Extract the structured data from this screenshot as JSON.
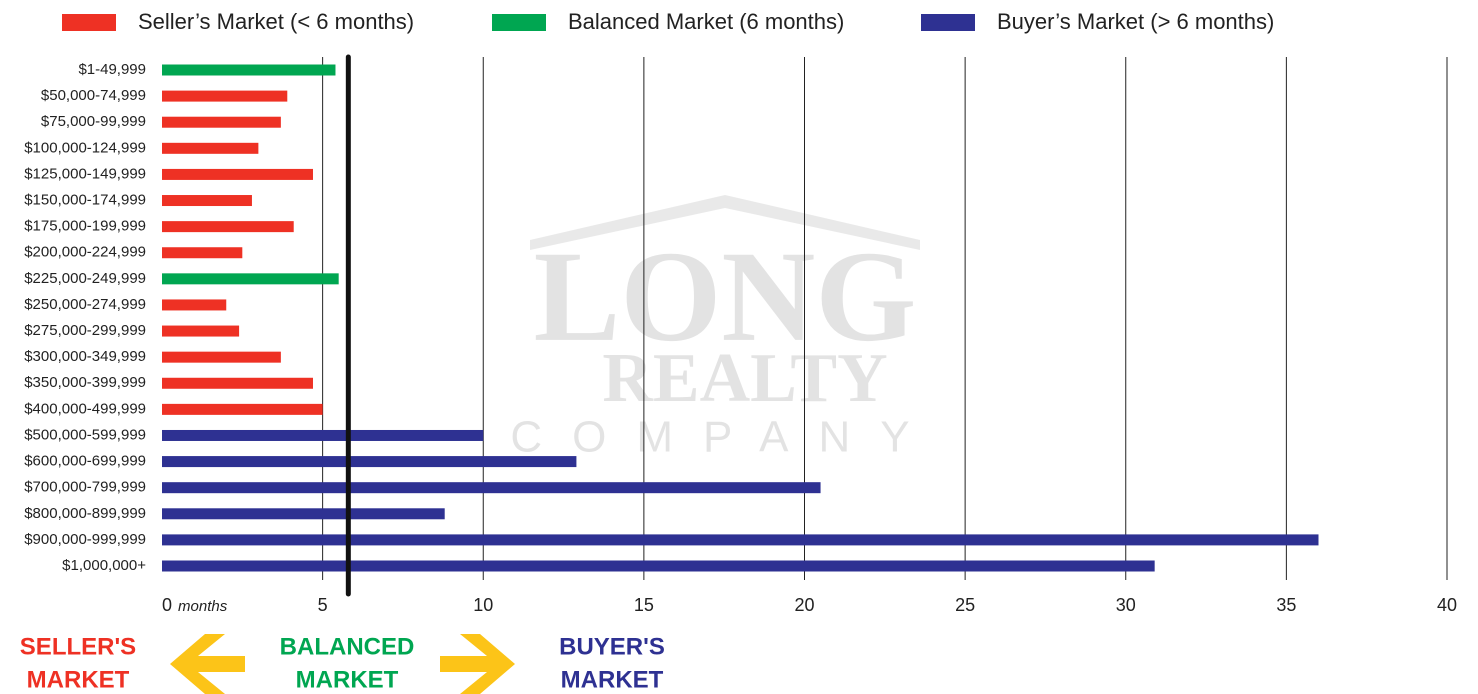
{
  "chart_data": {
    "type": "bar",
    "orientation": "horizontal",
    "legend": [
      {
        "name": "Seller’s Market (< 6 months)",
        "color": "#ee3124"
      },
      {
        "name": "Balanced Market (6 months)",
        "color": "#00a651"
      },
      {
        "name": "Buyer’s Market (> 6 months)",
        "color": "#2e3192"
      }
    ],
    "categories": [
      "$1-49,999",
      "$50,000-74,999",
      "$75,000-99,999",
      "$100,000-124,999",
      "$125,000-149,999",
      "$150,000-174,999",
      "$175,000-199,999",
      "$200,000-224,999",
      "$225,000-249,999",
      "$250,000-274,999",
      "$275,000-299,999",
      "$300,000-349,999",
      "$350,000-399,999",
      "$400,000-499,999",
      "$500,000-599,999",
      "$600,000-699,999",
      "$700,000-799,999",
      "$800,000-899,999",
      "$900,000-999,999",
      "$1,000,000+"
    ],
    "values": [
      5.4,
      3.9,
      3.7,
      3.0,
      4.7,
      2.8,
      4.1,
      2.5,
      5.5,
      2.0,
      2.4,
      3.7,
      4.7,
      5.0,
      10.0,
      12.9,
      20.5,
      8.8,
      36.0,
      30.9
    ],
    "colors": [
      "#00a651",
      "#ee3124",
      "#ee3124",
      "#ee3124",
      "#ee3124",
      "#ee3124",
      "#ee3124",
      "#ee3124",
      "#00a651",
      "#ee3124",
      "#ee3124",
      "#ee3124",
      "#ee3124",
      "#ee3124",
      "#2e3192",
      "#2e3192",
      "#2e3192",
      "#2e3192",
      "#2e3192",
      "#2e3192"
    ],
    "xlim": [
      0,
      40
    ],
    "xticks": [
      0,
      5,
      10,
      15,
      20,
      25,
      30,
      35,
      40
    ],
    "x_unit": "months",
    "reference_line": 5.8,
    "grid": true,
    "annotations": [
      {
        "lines": [
          "SELLER'S",
          "MARKET"
        ],
        "color": "#ee3124"
      },
      {
        "lines": [
          "BALANCED",
          "MARKET"
        ],
        "color": "#00a651"
      },
      {
        "lines": [
          "BUYER'S",
          "MARKET"
        ],
        "color": "#2e3192"
      }
    ],
    "watermark": [
      "LONG",
      "REALTY",
      "COMPANY"
    ]
  }
}
